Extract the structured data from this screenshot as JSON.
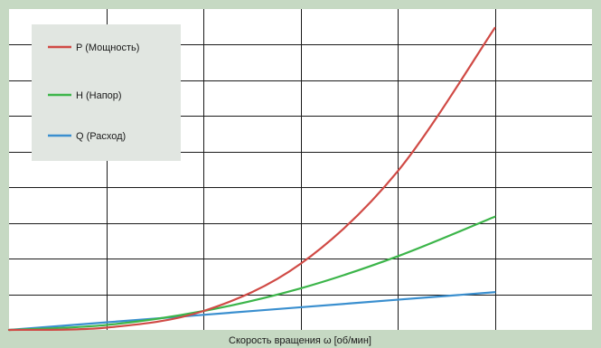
{
  "chart_data": {
    "type": "line",
    "title": "",
    "xlabel": "Скорость вращения ω [об/мин]",
    "ylabel": "",
    "xlim": [
      0,
      6
    ],
    "ylim": [
      0,
      8.5
    ],
    "grid": true,
    "legend_position": "top-left",
    "x": [
      0,
      1,
      2,
      3,
      4,
      5
    ],
    "series": [
      {
        "name": "P (Мощность)",
        "color": "#d04a45",
        "values": [
          0,
          0.06,
          0.5,
          1.75,
          4.2,
          8.0
        ]
      },
      {
        "name": "H (Напор)",
        "color": "#3cb54a",
        "values": [
          0,
          0.13,
          0.5,
          1.1,
          1.95,
          3.0
        ]
      },
      {
        "name": "Q (Расход)",
        "color": "#3a8fcf",
        "values": [
          0,
          0.2,
          0.4,
          0.6,
          0.8,
          1.0
        ]
      }
    ]
  }
}
